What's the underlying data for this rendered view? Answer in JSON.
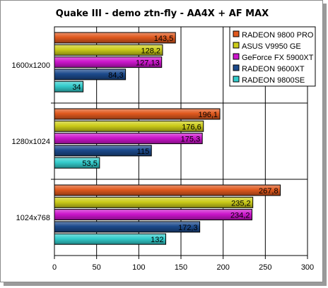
{
  "chart_data": {
    "type": "bar",
    "orientation": "horizontal",
    "title": "Quake III - demo ztn-fly - AA4X + AF MAX",
    "xlabel": "",
    "ylabel": "",
    "xlim": [
      0,
      300
    ],
    "x_ticks": [
      "0",
      "50",
      "100",
      "150",
      "200",
      "250",
      "300"
    ],
    "grid": true,
    "legend_position": "top-right",
    "categories": [
      "1600x1200",
      "1280x1024",
      "1024x768"
    ],
    "series": [
      {
        "name": "RADEON 9800 PRO",
        "color": "#e0591e",
        "values": [
          143.5,
          196.1,
          267.8
        ],
        "labels": [
          "143,5",
          "196,1",
          "267,8"
        ]
      },
      {
        "name": "ASUS V9950 GE",
        "color": "#cccc1a",
        "values": [
          128.2,
          176.6,
          235.2
        ],
        "labels": [
          "128,2",
          "176,6",
          "235,2"
        ]
      },
      {
        "name": "GeForce FX 5900XT",
        "color": "#cc16cc",
        "values": [
          127.13,
          175.3,
          234.2
        ],
        "labels": [
          "127,13",
          "175,3",
          "234,2"
        ]
      },
      {
        "name": "RADEON 9600XT",
        "color": "#1c4a8c",
        "values": [
          84.3,
          115,
          172.3
        ],
        "labels": [
          "84,3",
          "115",
          "172,3"
        ]
      },
      {
        "name": "RADEON 9800SE",
        "color": "#33cccc",
        "values": [
          34,
          53.5,
          132
        ],
        "labels": [
          "34",
          "53,5",
          "132"
        ]
      }
    ]
  }
}
